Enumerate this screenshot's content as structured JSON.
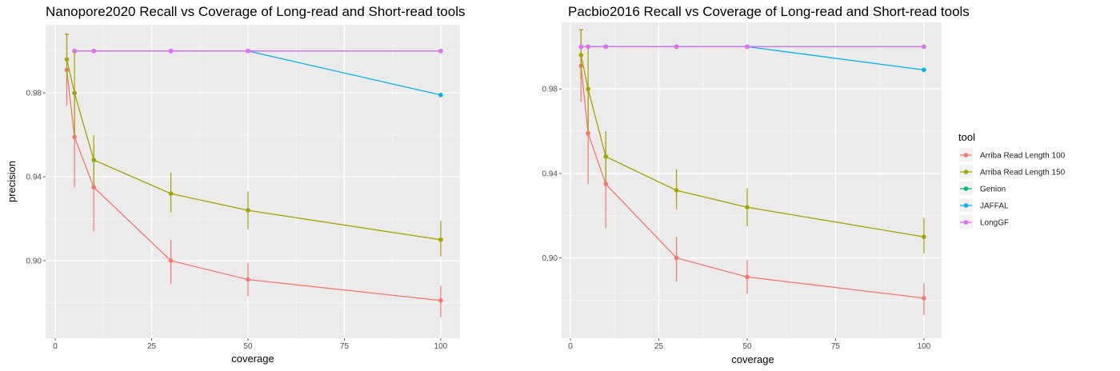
{
  "chart_data": [
    {
      "type": "line",
      "title": "Nanopore2020 Recall vs Coverage of Long-read and Short-read tools",
      "xlabel": "coverage",
      "ylabel": "precision",
      "xlim": [
        -2.5,
        105
      ],
      "ylim": [
        0.863,
        1.0125
      ],
      "xticks": [
        0,
        25,
        50,
        75,
        100
      ],
      "xtick_labels": [
        "0",
        "25",
        "50",
        "75",
        "100"
      ],
      "yticks": [
        0.9,
        0.94,
        0.98
      ],
      "ytick_labels": [
        "0.90",
        "0.94",
        "0.98"
      ],
      "grid": true,
      "series": [
        {
          "name": "Arriba Read Length 100",
          "color": "#F8766D",
          "x": [
            3,
            5,
            10,
            30,
            50,
            100
          ],
          "y": [
            0.991,
            0.959,
            0.935,
            0.9,
            0.891,
            0.881
          ],
          "err_low": [
            0.974,
            0.935,
            0.914,
            0.889,
            0.883,
            0.873
          ],
          "err_high": [
            1.008,
            0.98,
            0.955,
            0.91,
            0.899,
            0.888
          ]
        },
        {
          "name": "Arriba Read Length 150",
          "color": "#A3A500",
          "x": [
            3,
            5,
            10,
            30,
            50,
            100
          ],
          "y": [
            0.996,
            0.98,
            0.948,
            0.932,
            0.924,
            0.91
          ],
          "err_low": [
            0.985,
            0.96,
            0.936,
            0.923,
            0.915,
            0.902
          ],
          "err_high": [
            1.008,
            1.0,
            0.96,
            0.942,
            0.933,
            0.919
          ]
        },
        {
          "name": "Genion",
          "color": "#00BF7D",
          "x": [
            5,
            10,
            30,
            50,
            100
          ],
          "y": [
            1.0,
            1.0,
            1.0,
            1.0,
            1.0
          ]
        },
        {
          "name": "JAFFAL",
          "color": "#00B0F6",
          "x": [
            5,
            10,
            30,
            50,
            100
          ],
          "y": [
            1.0,
            1.0,
            1.0,
            1.0,
            0.979
          ]
        },
        {
          "name": "LongGF",
          "color": "#E76BF3",
          "x": [
            5,
            10,
            30,
            50,
            100
          ],
          "y": [
            1.0,
            1.0,
            1.0,
            1.0,
            1.0
          ]
        }
      ]
    },
    {
      "type": "line",
      "title": "Pacbio2016 Recall vs Coverage of Long-read and Short-read tools",
      "xlabel": "coverage",
      "ylabel": "",
      "xlim": [
        -2.5,
        105
      ],
      "ylim": [
        0.862,
        1.0115
      ],
      "xticks": [
        0,
        25,
        50,
        75,
        100
      ],
      "xtick_labels": [
        "0",
        "25",
        "50",
        "75",
        "100"
      ],
      "yticks": [
        0.9,
        0.94,
        0.98
      ],
      "ytick_labels": [
        "0.90",
        "0.94",
        "0.98"
      ],
      "grid": true,
      "series": [
        {
          "name": "Arriba Read Length 100",
          "color": "#F8766D",
          "x": [
            3,
            5,
            10,
            30,
            50,
            100
          ],
          "y": [
            0.991,
            0.959,
            0.935,
            0.9,
            0.891,
            0.881
          ],
          "err_low": [
            0.974,
            0.935,
            0.914,
            0.889,
            0.883,
            0.873
          ],
          "err_high": [
            1.008,
            0.98,
            0.955,
            0.91,
            0.899,
            0.888
          ]
        },
        {
          "name": "Arriba Read Length 150",
          "color": "#A3A500",
          "x": [
            3,
            5,
            10,
            30,
            50,
            100
          ],
          "y": [
            0.996,
            0.98,
            0.948,
            0.932,
            0.924,
            0.91
          ],
          "err_low": [
            0.985,
            0.96,
            0.936,
            0.923,
            0.915,
            0.902
          ],
          "err_high": [
            1.008,
            1.0,
            0.96,
            0.942,
            0.933,
            0.919
          ]
        },
        {
          "name": "Genion",
          "color": "#00BF7D",
          "x": [
            3,
            5,
            10,
            30,
            50,
            100
          ],
          "y": [
            1.0,
            1.0,
            1.0,
            1.0,
            1.0,
            1.0
          ]
        },
        {
          "name": "JAFFAL",
          "color": "#00B0F6",
          "x": [
            3,
            5,
            10,
            30,
            50,
            100
          ],
          "y": [
            1.0,
            1.0,
            1.0,
            1.0,
            1.0,
            0.989
          ]
        },
        {
          "name": "LongGF",
          "color": "#E76BF3",
          "x": [
            3,
            5,
            10,
            30,
            50,
            100
          ],
          "y": [
            1.0,
            1.0,
            1.0,
            1.0,
            1.0,
            1.0
          ]
        }
      ]
    }
  ],
  "legend": {
    "title": "tool",
    "position": "right",
    "items": [
      {
        "label": "Arriba Read Length 100",
        "color": "#F8766D"
      },
      {
        "label": "Arriba Read Length 150",
        "color": "#A3A500"
      },
      {
        "label": "Genion",
        "color": "#00BF7D"
      },
      {
        "label": "JAFFAL",
        "color": "#00B0F6"
      },
      {
        "label": "LongGF",
        "color": "#E76BF3"
      }
    ]
  }
}
